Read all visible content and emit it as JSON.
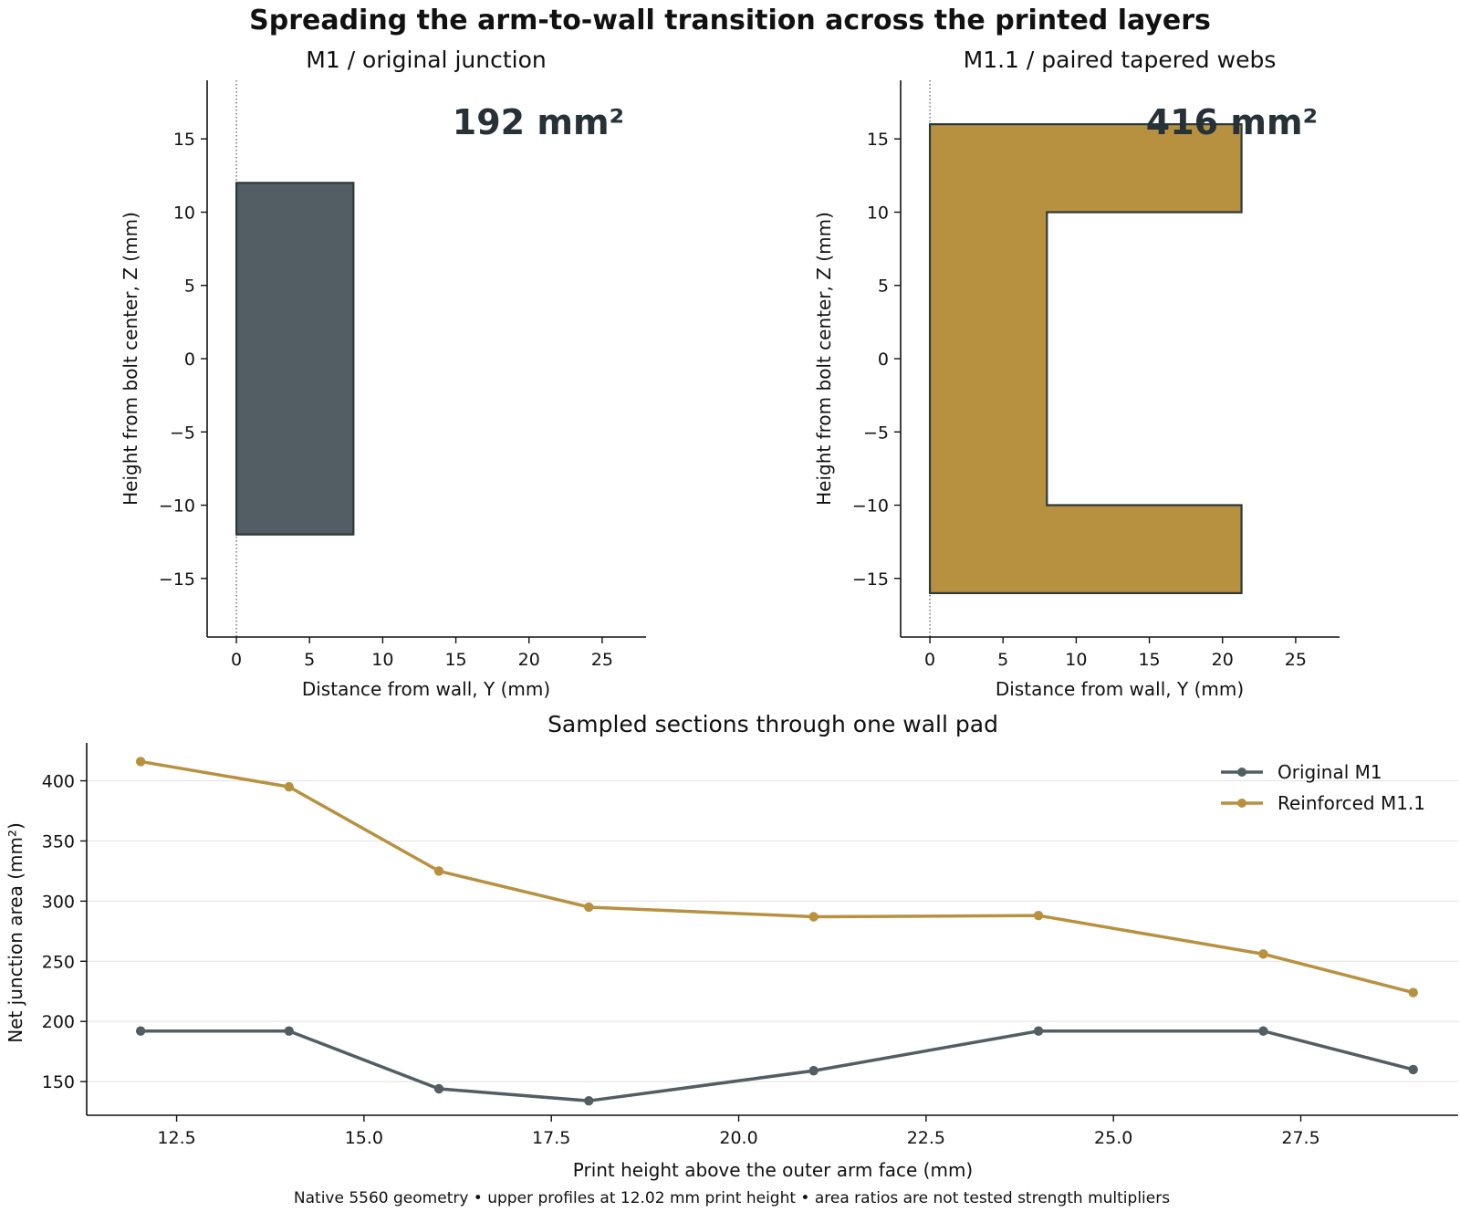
{
  "title": "Spreading the arm-to-wall transition across the printed layers",
  "footnote": "Native 5560 geometry • upper profiles at 12.02 mm print height • area ratios are not tested strength multipliers",
  "colors": {
    "original": "#525e63",
    "reinforced": "#b89140",
    "outline": "#2c3a3a",
    "area_text": "#263238"
  },
  "chart_data": [
    {
      "type": "area",
      "title": "M1 / original junction",
      "xlabel": "Distance from wall, Y (mm)",
      "ylabel": "Height from bolt center, Z (mm)",
      "xlim": [
        -2,
        28
      ],
      "ylim": [
        -19,
        19
      ],
      "xticks": [
        0,
        5,
        10,
        15,
        20,
        25
      ],
      "yticks": [
        -15,
        -10,
        -5,
        0,
        5,
        10,
        15
      ],
      "annotation": "192 mm²",
      "wall_line_y": 0,
      "profile": [
        [
          0,
          -12
        ],
        [
          8,
          -12
        ],
        [
          8,
          12
        ],
        [
          0,
          12
        ]
      ]
    },
    {
      "type": "area",
      "title": "M1.1 / paired tapered webs",
      "xlabel": "Distance from wall, Y (mm)",
      "ylabel": "Height from bolt center, Z (mm)",
      "xlim": [
        -2,
        28
      ],
      "ylim": [
        -19,
        19
      ],
      "xticks": [
        0,
        5,
        10,
        15,
        20,
        25
      ],
      "yticks": [
        -15,
        -10,
        -5,
        0,
        5,
        10,
        15
      ],
      "annotation": "416 mm²",
      "wall_line_y": 0,
      "profile": [
        [
          0,
          -16
        ],
        [
          21.3,
          -16
        ],
        [
          21.3,
          -10
        ],
        [
          8,
          -10
        ],
        [
          8,
          10
        ],
        [
          21.3,
          10
        ],
        [
          21.3,
          16
        ],
        [
          0,
          16
        ]
      ]
    },
    {
      "type": "line",
      "title": "Sampled sections through one wall pad",
      "xlabel": "Print height above the outer arm face (mm)",
      "ylabel": "Net junction area (mm²)",
      "xlim": [
        11.3,
        29.6
      ],
      "ylim": [
        122,
        430
      ],
      "xticks": [
        "12.5",
        "15.0",
        "17.5",
        "20.0",
        "22.5",
        "25.0",
        "27.5"
      ],
      "yticks": [
        150,
        200,
        250,
        300,
        350,
        400
      ],
      "grid": "horizontal",
      "legend": "top-right",
      "x": [
        12.02,
        14,
        16,
        18,
        21,
        24,
        27,
        29
      ],
      "series": [
        {
          "name": "Original M1",
          "values": [
            192,
            192,
            144,
            134,
            159,
            192,
            192,
            160
          ]
        },
        {
          "name": "Reinforced M1.1",
          "values": [
            416,
            395,
            325,
            295,
            287,
            288,
            256,
            224
          ]
        }
      ]
    }
  ]
}
